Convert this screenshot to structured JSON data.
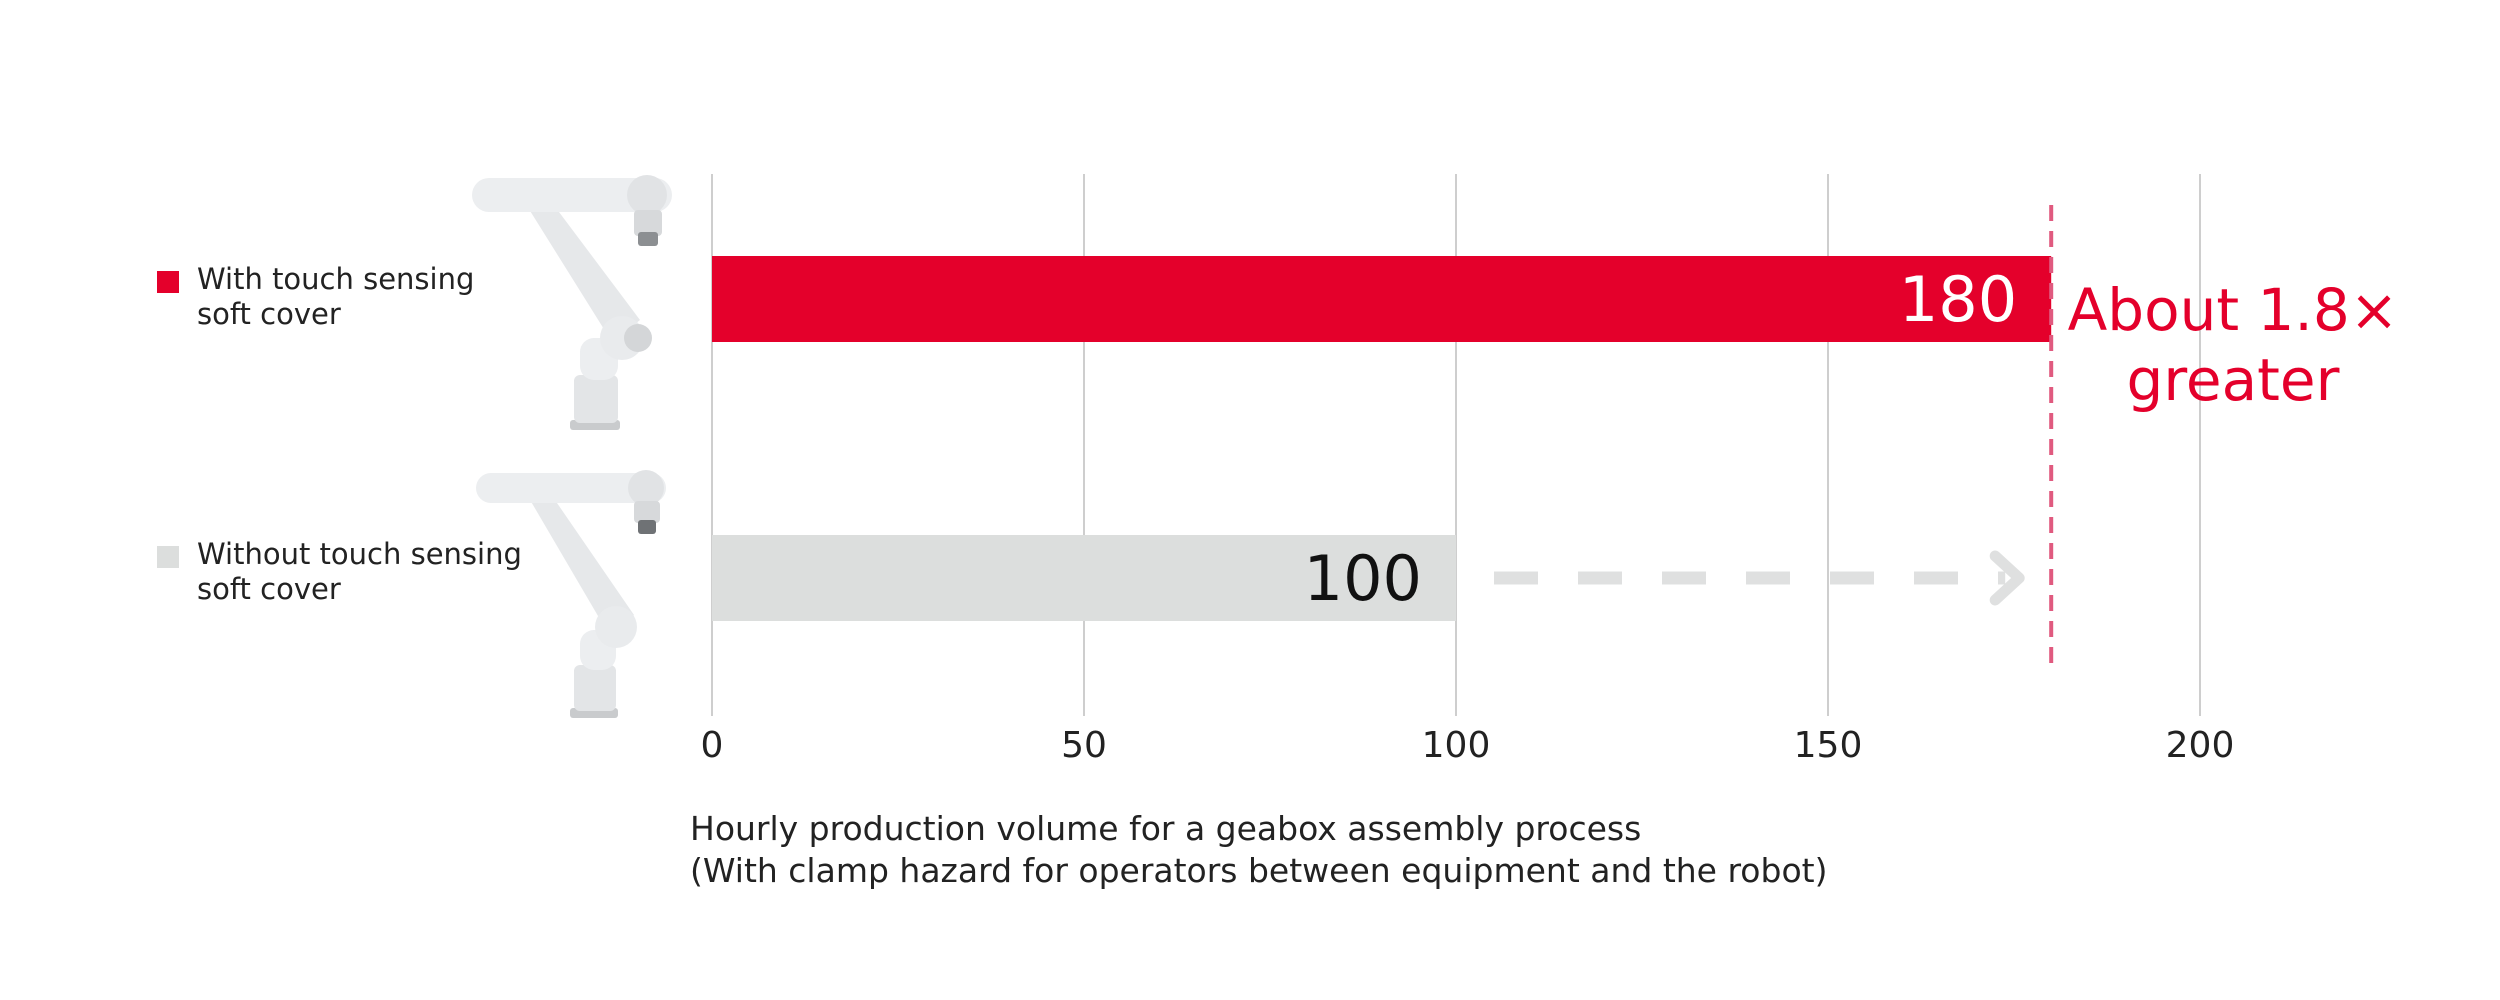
{
  "chart_data": {
    "type": "bar",
    "orientation": "horizontal",
    "categories": [
      "With touch sensing\nsoft cover",
      "Without touch sensing\nsoft cover"
    ],
    "values": [
      180,
      100
    ],
    "data_labels": [
      "180",
      "100"
    ],
    "xlim": [
      0,
      200
    ],
    "xticks": [
      0,
      50,
      100,
      150,
      200
    ],
    "xtick_labels": [
      "0",
      "50",
      "100",
      "150",
      "200"
    ],
    "grid": "vertical",
    "xlabel": "Hourly production volume for a geabox assembly process\n(With clamp hazard for operators between equipment and the robot)",
    "annotation": {
      "text": "About 1.8×\ngreater",
      "reference_value": 180
    },
    "arrow": {
      "from": 100,
      "to": 180
    },
    "colors": {
      "with_cover": "#e4002b",
      "without_cover": "#dcdedd",
      "annotation": "#e4002b",
      "reference_line": "#e05a7f",
      "arrow": "#dfe0e0",
      "grid": "#bdbdbd"
    }
  }
}
